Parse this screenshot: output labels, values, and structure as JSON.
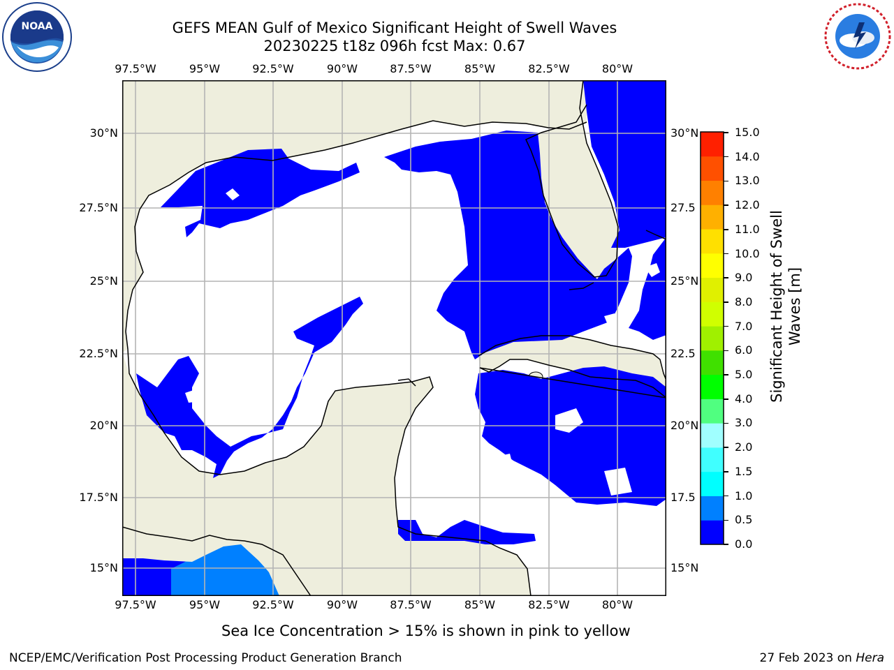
{
  "header": {
    "title_line1": "GEFS MEAN Gulf of Mexico Significant Height of Swell Waves",
    "title_line2": "20230225 t18z 096h fcst   Max: 0.67"
  },
  "logos": {
    "left": {
      "name": "NOAA",
      "ring_text": "NATIONAL OCEANIC AND ATMOSPHERIC ADMINISTRATION · U.S. DEPARTMENT OF COMMERCE"
    },
    "right": {
      "name": "NATIONAL WEATHER SERVICE"
    }
  },
  "map": {
    "lon_ticks": [
      "97.5°W",
      "95°W",
      "92.5°W",
      "90°W",
      "87.5°W",
      "85°W",
      "82.5°W",
      "80°W"
    ],
    "lat_ticks_left": [
      "30°N",
      "27.5°N",
      "25°N",
      "22.5°N",
      "20°N",
      "17.5°N",
      "15°N"
    ],
    "lat_ticks_right": [
      "30°N",
      "27.5",
      "25°N",
      "22.5",
      "20°N",
      "17.5",
      "15°N"
    ],
    "colors": {
      "land": "#EEEEDD",
      "ocean_low": "#FFFFFF",
      "band_0_0p5": "#0000FF",
      "band_0p5_1": "#0080FF",
      "grid": "#B4B4B4",
      "coast": "#000000"
    }
  },
  "colorbar": {
    "label_line1": "Significant Height of Swell",
    "label_line2": "Waves [m]",
    "ticks": [
      "15.0",
      "14.0",
      "13.0",
      "12.0",
      "11.0",
      "10.0",
      "9.0",
      "8.0",
      "7.0",
      "6.0",
      "5.0",
      "4.0",
      "3.0",
      "2.0",
      "1.5",
      "1.0",
      "0.5",
      "0.0"
    ],
    "colors": [
      "#0000FF",
      "#0080FF",
      "#00FFFF",
      "#40FFFF",
      "#A0FFFF",
      "#50FF80",
      "#00FF00",
      "#40E000",
      "#A0F000",
      "#D0FF00",
      "#E0F000",
      "#FFFF00",
      "#FFE000",
      "#FFB000",
      "#FF8000",
      "#FF5000",
      "#FF2000"
    ]
  },
  "notes": {
    "sea_ice": "Sea Ice Concentration > 15% is shown in pink to yellow"
  },
  "footer": {
    "left": "NCEP/EMC/Verification Post Processing Product Generation Branch",
    "right_date": "27 Feb 2023 on ",
    "right_machine": "Hera"
  }
}
